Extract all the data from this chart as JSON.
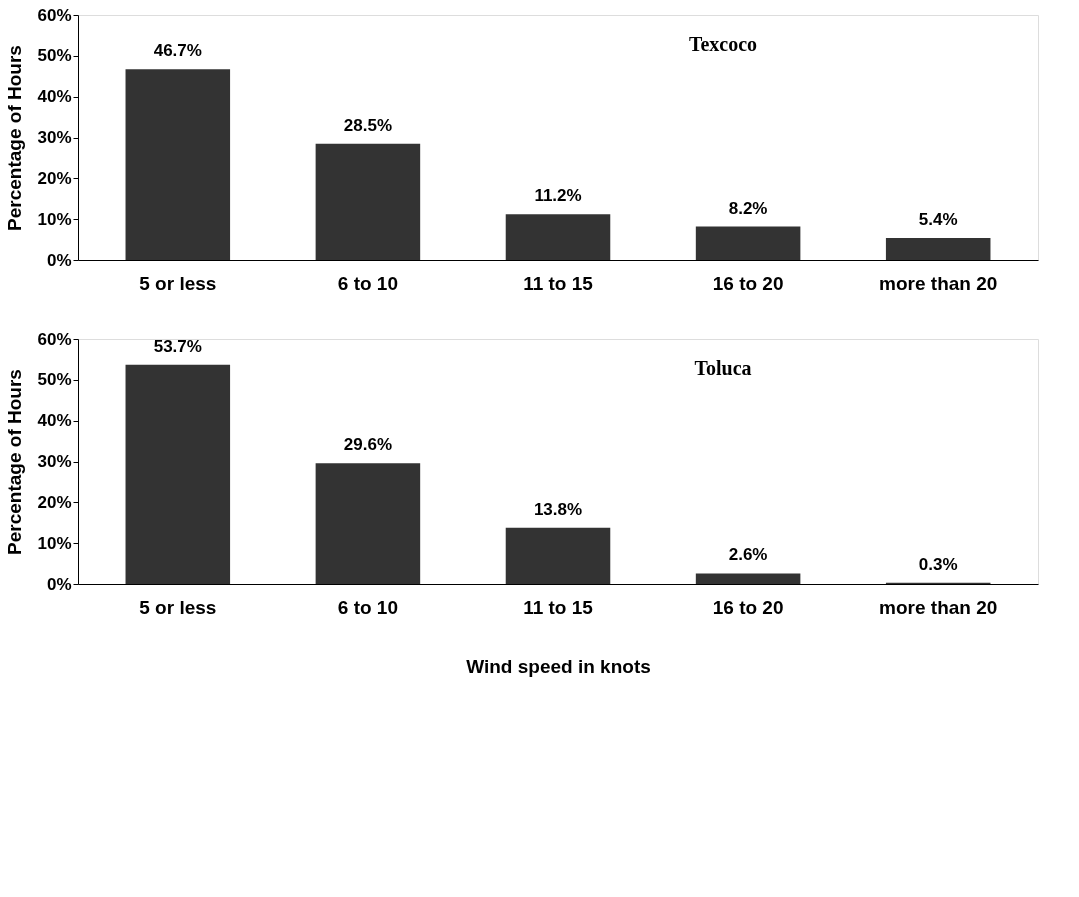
{
  "chart_data": [
    {
      "type": "bar",
      "title": "Texcoco",
      "ylabel": "Percentage of Hours",
      "categories": [
        "5 or less",
        "6 to 10",
        "11 to 15",
        "16 to 20",
        "more than 20"
      ],
      "values": [
        46.7,
        28.5,
        11.2,
        8.2,
        5.4
      ],
      "color": "#333333",
      "value_labels": [
        "46.7%",
        "28.5%",
        "11.2%",
        "8.2%",
        "5.4%"
      ],
      "ylim": [
        0,
        60
      ],
      "yticks": [
        {
          "value": 0,
          "label": "0%"
        },
        {
          "value": 10,
          "label": "10%"
        },
        {
          "value": 20,
          "label": "20%"
        },
        {
          "value": 30,
          "label": "30%"
        },
        {
          "value": 40,
          "label": "40%"
        },
        {
          "value": 50,
          "label": "50%"
        },
        {
          "value": 60,
          "label": "60%"
        }
      ],
      "grid": false
    },
    {
      "type": "bar",
      "title": "Toluca",
      "ylabel": "Percentage of Hours",
      "xlabel": "Wind speed in knots",
      "categories": [
        "5 or less",
        "6 to 10",
        "11 to 15",
        "16 to 20",
        "more than 20"
      ],
      "values": [
        53.7,
        29.6,
        13.8,
        2.6,
        0.3
      ],
      "color": "#333333",
      "value_labels": [
        "53.7%",
        "29.6%",
        "13.8%",
        "2.6%",
        "0.3%"
      ],
      "ylim": [
        0,
        60
      ],
      "yticks": [
        {
          "value": 0,
          "label": "0%"
        },
        {
          "value": 10,
          "label": "10%"
        },
        {
          "value": 20,
          "label": "20%"
        },
        {
          "value": 30,
          "label": "30%"
        },
        {
          "value": 40,
          "label": "40%"
        },
        {
          "value": 50,
          "label": "50%"
        },
        {
          "value": 60,
          "label": "60%"
        }
      ],
      "grid": false
    }
  ]
}
